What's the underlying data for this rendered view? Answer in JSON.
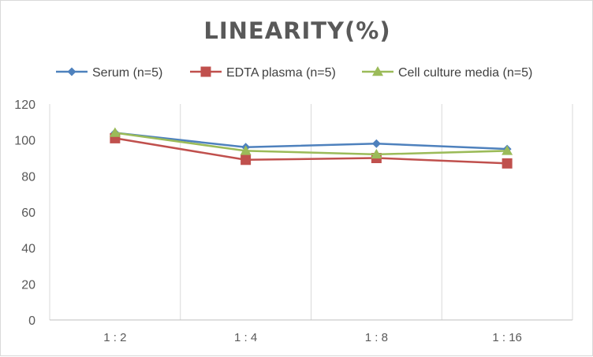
{
  "chart_data": {
    "type": "line",
    "title": "LINEARITY(%)",
    "categories": [
      "1:2",
      "1:4",
      "1:8",
      "1:16"
    ],
    "series": [
      {
        "name": "Serum (n=5)",
        "values": [
          104,
          96,
          98,
          95
        ],
        "color": "#4e81bd",
        "marker": "diamond"
      },
      {
        "name": "EDTA plasma (n=5)",
        "values": [
          101,
          89,
          90,
          87
        ],
        "color": "#c0504d",
        "marker": "square"
      },
      {
        "name": "Cell culture media (n=5)",
        "values": [
          104,
          94,
          92,
          94
        ],
        "color": "#9bbb59",
        "marker": "triangle"
      }
    ],
    "ylim": [
      0,
      120
    ],
    "yticks": [
      0,
      20,
      40,
      60,
      80,
      100,
      120
    ],
    "grid": "vertical-category-lines",
    "legend_position": "top"
  }
}
